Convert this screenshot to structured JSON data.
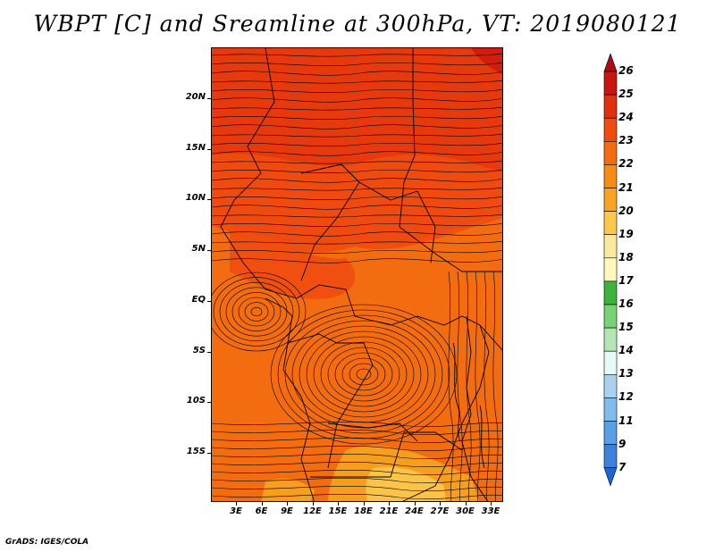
{
  "title": "WBPT [C] and Sreamline at 300hPa, VT: 2019080121",
  "footer": "GrADS: IGES/COLA",
  "map": {
    "variable": "wet-bulb potential temperature",
    "level": "300hPa",
    "lat_labels": [
      "20N",
      "15N",
      "10N",
      "5N",
      "EQ",
      "5S",
      "10S",
      "15S"
    ],
    "lon_labels": [
      "3E",
      "6E",
      "9E",
      "12E",
      "15E",
      "18E",
      "21E",
      "24E",
      "27E",
      "30E",
      "33E"
    ],
    "field_colors": {
      "c25": "#cc1c0c",
      "c24": "#e6340e",
      "c23": "#f04c10",
      "c22": "#f46c10",
      "c21": "#f7a420",
      "c20": "#fbc84c"
    }
  },
  "colorbar": {
    "labels": [
      "26",
      "25",
      "24",
      "23",
      "22",
      "21",
      "20",
      "19",
      "18",
      "17",
      "16",
      "15",
      "14",
      "13",
      "12",
      "11",
      "9",
      "7"
    ],
    "colors": [
      "#a50f15",
      "#c8150f",
      "#e2300e",
      "#f04c10",
      "#f46c10",
      "#f78c14",
      "#f9a420",
      "#fbc84c",
      "#fce89c",
      "#fef8c0",
      "#3cb43c",
      "#78d278",
      "#b4e6b4",
      "#e6f8f8",
      "#aad2f0",
      "#82bcec",
      "#5aa0e6",
      "#3c82dc",
      "#1e64d2"
    ]
  }
}
